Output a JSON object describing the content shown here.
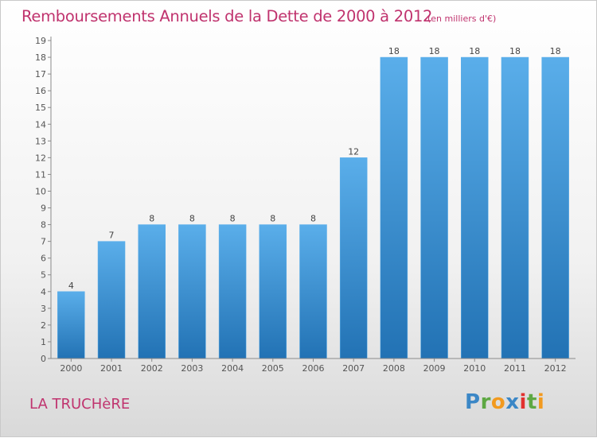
{
  "title": "Remboursements Annuels de la Dette de 2000 à 2012",
  "subtitle": "(en milliers d'€)",
  "commune": "LA TRUCHèRE",
  "logo_text": "Proxiti",
  "colors": {
    "title": "#c0336e",
    "bar_top": "#5aaeea",
    "bar_bottom": "#2272b4"
  },
  "chart_data": {
    "type": "bar",
    "title": "Remboursements Annuels de la Dette de 2000 à 2012",
    "subtitle": "(en milliers d'€)",
    "categories": [
      "2000",
      "2001",
      "2002",
      "2003",
      "2004",
      "2005",
      "2006",
      "2007",
      "2008",
      "2009",
      "2010",
      "2011",
      "2012"
    ],
    "values": [
      4,
      7,
      8,
      8,
      8,
      8,
      8,
      12,
      18,
      18,
      18,
      18,
      18
    ],
    "data_labels": [
      "4",
      "7",
      "8",
      "8",
      "8",
      "8",
      "8",
      "12",
      "18",
      "18",
      "18",
      "18",
      "18"
    ],
    "ylim": [
      0,
      19
    ],
    "yticks": [
      0,
      1,
      2,
      3,
      4,
      5,
      6,
      7,
      8,
      9,
      10,
      11,
      12,
      13,
      14,
      15,
      16,
      17,
      18,
      19
    ],
    "grid": false
  }
}
